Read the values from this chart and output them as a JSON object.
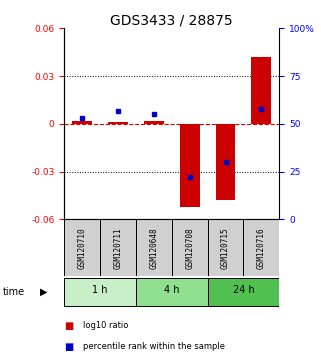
{
  "title": "GDS3433 / 28875",
  "samples": [
    "GSM120710",
    "GSM120711",
    "GSM120648",
    "GSM120708",
    "GSM120715",
    "GSM120716"
  ],
  "log10_ratio": [
    0.002,
    0.001,
    0.002,
    -0.052,
    -0.048,
    0.042
  ],
  "percentile_rank": [
    53,
    57,
    55,
    22,
    30,
    58
  ],
  "groups": [
    {
      "label": "1 h",
      "indices": [
        0,
        1
      ],
      "color": "#c8f0c8"
    },
    {
      "label": "4 h",
      "indices": [
        2,
        3
      ],
      "color": "#90e090"
    },
    {
      "label": "24 h",
      "indices": [
        4,
        5
      ],
      "color": "#50c050"
    }
  ],
  "ylim_left": [
    -0.06,
    0.06
  ],
  "ylim_right": [
    0,
    100
  ],
  "yticks_left": [
    -0.06,
    -0.03,
    0,
    0.03,
    0.06
  ],
  "yticks_right": [
    0,
    25,
    50,
    75,
    100
  ],
  "bar_color": "#cc0000",
  "dot_color": "#0000cc",
  "zero_line_color": "#cc0000",
  "grid_color": "#000000",
  "sample_box_color": "#d0d0d0",
  "background_color": "#ffffff",
  "title_fontsize": 10,
  "tick_fontsize": 6.5,
  "label_fontsize": 6.5
}
